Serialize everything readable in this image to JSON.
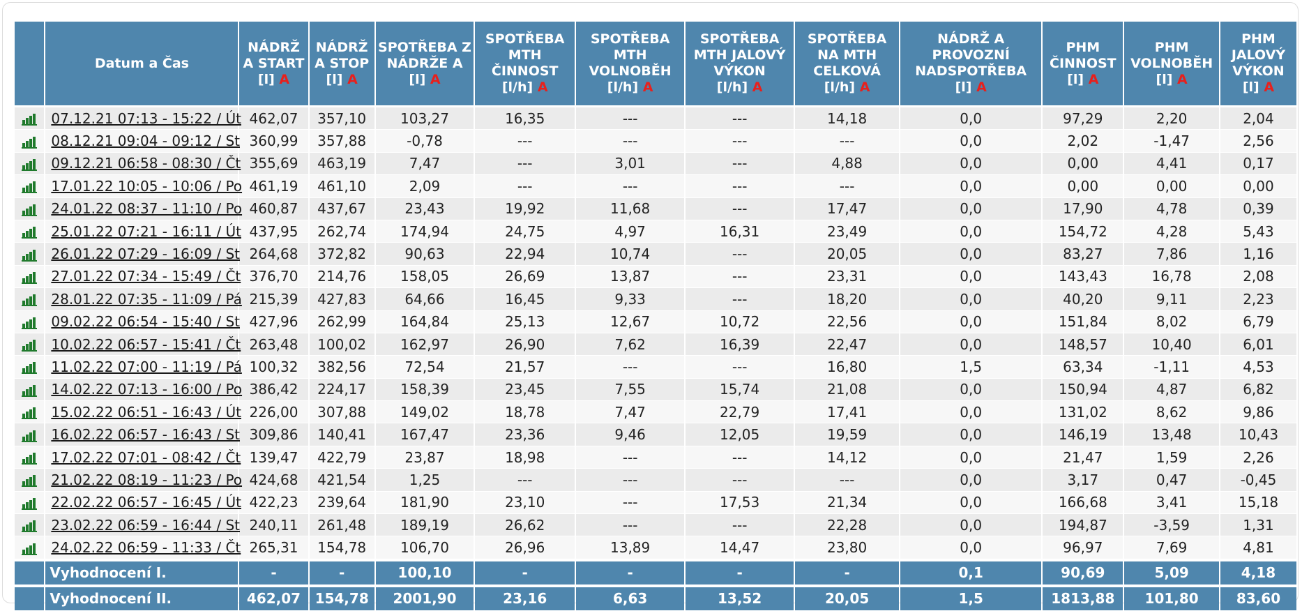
{
  "headers": [
    {
      "key": "icon",
      "line1": "",
      "unit": "",
      "flag": ""
    },
    {
      "key": "date",
      "line1": "Datum a Čas",
      "unit": "",
      "flag": ""
    },
    {
      "key": "nadrz_a_start",
      "line1": "NÁDRŽ A START",
      "unit": "[l]",
      "flag": "A"
    },
    {
      "key": "nadrz_a_stop",
      "line1": "NÁDRŽ A STOP",
      "unit": "[l]",
      "flag": "A"
    },
    {
      "key": "spotreba_z_nadrze_a",
      "line1": "SPOTŘEBA Z NÁDRŽE A",
      "unit": "[l]",
      "flag": "A"
    },
    {
      "key": "spotreba_mth_cinnost",
      "line1": "SPOTŘEBA MTH ČINNOST",
      "unit": "[l/h]",
      "flag": "A"
    },
    {
      "key": "spotreba_mth_volnobeh",
      "line1": "SPOTŘEBA MTH VOLNOBĚH",
      "unit": "[l/h]",
      "flag": "A"
    },
    {
      "key": "spotreba_mth_jalovy_vykon",
      "line1": "SPOTŘEBA MTH JALOVÝ VÝKON",
      "unit": "[l/h]",
      "flag": "A"
    },
    {
      "key": "spotreba_na_mth_celkova",
      "line1": "SPOTŘEBA NA MTH CELKOVÁ",
      "unit": "[l/h]",
      "flag": "A"
    },
    {
      "key": "nadrz_a_provozni_nadspotreba",
      "line1": "NÁDRŽ A PROVOZNÍ NADSPOTŘEBA",
      "unit": "[l]",
      "flag": "A"
    },
    {
      "key": "phm_cinnost",
      "line1": "PHM ČINNOST",
      "unit": "[l]",
      "flag": "A"
    },
    {
      "key": "phm_volnobeh",
      "line1": "PHM VOLNOBĚH",
      "unit": "[l]",
      "flag": "A"
    },
    {
      "key": "phm_jalovy_vykon",
      "line1": "PHM JALOVÝ VÝKON",
      "unit": "[l]",
      "flag": "A"
    }
  ],
  "rows": [
    [
      "07.12.21 07:13 - 15:22 / Út",
      "462,07",
      "357,10",
      "103,27",
      "16,35",
      "---",
      "---",
      "14,18",
      "0,0",
      "97,29",
      "2,20",
      "2,04"
    ],
    [
      "08.12.21 09:04 - 09:12 / St",
      "360,99",
      "357,88",
      "-0,78",
      "---",
      "---",
      "---",
      "---",
      "0,0",
      "2,02",
      "-1,47",
      "2,56"
    ],
    [
      "09.12.21 06:58 - 08:30 / Čt",
      "355,69",
      "463,19",
      "7,47",
      "---",
      "3,01",
      "---",
      "4,88",
      "0,0",
      "0,00",
      "4,41",
      "0,17"
    ],
    [
      "17.01.22 10:05 - 10:06 / Po",
      "461,19",
      "461,10",
      "2,09",
      "---",
      "---",
      "---",
      "---",
      "0,0",
      "0,00",
      "0,00",
      "0,00"
    ],
    [
      "24.01.22 08:37 - 11:10 / Po",
      "460,87",
      "437,67",
      "23,43",
      "19,92",
      "11,68",
      "---",
      "17,47",
      "0,0",
      "17,90",
      "4,78",
      "0,39"
    ],
    [
      "25.01.22 07:21 - 16:11 / Út",
      "437,95",
      "262,74",
      "174,94",
      "24,75",
      "4,97",
      "16,31",
      "23,49",
      "0,0",
      "154,72",
      "4,28",
      "5,43"
    ],
    [
      "26.01.22 07:29 - 16:09 / St",
      "264,68",
      "372,82",
      "90,63",
      "22,94",
      "10,74",
      "---",
      "20,05",
      "0,0",
      "83,27",
      "7,86",
      "1,16"
    ],
    [
      "27.01.22 07:34 - 15:49 / Čt",
      "376,70",
      "214,76",
      "158,05",
      "26,69",
      "13,87",
      "---",
      "23,31",
      "0,0",
      "143,43",
      "16,78",
      "2,08"
    ],
    [
      "28.01.22 07:35 - 11:09 / Pá",
      "215,39",
      "427,83",
      "64,66",
      "16,45",
      "9,33",
      "---",
      "18,20",
      "0,0",
      "40,20",
      "9,11",
      "2,23"
    ],
    [
      "09.02.22 06:54 - 15:40 / St",
      "427,96",
      "262,99",
      "164,84",
      "25,13",
      "12,67",
      "10,72",
      "22,56",
      "0,0",
      "151,84",
      "8,02",
      "6,79"
    ],
    [
      "10.02.22 06:57 - 15:41 / Čt",
      "263,48",
      "100,02",
      "162,97",
      "26,90",
      "7,62",
      "16,39",
      "22,47",
      "0,0",
      "148,57",
      "10,40",
      "6,01"
    ],
    [
      "11.02.22 07:00 - 11:19 / Pá",
      "100,32",
      "382,56",
      "72,54",
      "21,57",
      "---",
      "---",
      "16,80",
      "1,5",
      "63,34",
      "-1,11",
      "4,53"
    ],
    [
      "14.02.22 07:13 - 16:00 / Po",
      "386,42",
      "224,17",
      "158,39",
      "23,45",
      "7,55",
      "15,74",
      "21,08",
      "0,0",
      "150,94",
      "4,87",
      "6,82"
    ],
    [
      "15.02.22 06:51 - 16:43 / Út",
      "226,00",
      "307,88",
      "149,02",
      "18,78",
      "7,47",
      "22,79",
      "17,41",
      "0,0",
      "131,02",
      "8,62",
      "9,86"
    ],
    [
      "16.02.22 06:57 - 16:43 / St",
      "309,86",
      "140,41",
      "167,47",
      "23,36",
      "9,46",
      "12,05",
      "19,59",
      "0,0",
      "146,19",
      "13,48",
      "10,43"
    ],
    [
      "17.02.22 07:01 - 08:42 / Čt",
      "139,47",
      "422,79",
      "23,87",
      "18,98",
      "---",
      "---",
      "14,12",
      "0,0",
      "21,47",
      "1,59",
      "2,26"
    ],
    [
      "21.02.22 08:19 - 11:23 / Po",
      "424,68",
      "421,54",
      "1,25",
      "---",
      "---",
      "---",
      "---",
      "0,0",
      "3,17",
      "0,47",
      "-0,45"
    ],
    [
      "22.02.22 06:57 - 16:45 / Út",
      "422,23",
      "239,64",
      "181,90",
      "23,10",
      "---",
      "17,53",
      "21,34",
      "0,0",
      "166,68",
      "3,41",
      "15,18"
    ],
    [
      "23.02.22 06:59 - 16:44 / St",
      "240,11",
      "261,48",
      "189,19",
      "26,62",
      "---",
      "---",
      "22,28",
      "0,0",
      "194,87",
      "-3,59",
      "1,31"
    ],
    [
      "24.02.22 06:59 - 11:33 / Čt",
      "265,31",
      "154,78",
      "106,70",
      "26,96",
      "13,89",
      "14,47",
      "23,80",
      "0,0",
      "96,97",
      "7,69",
      "4,81"
    ]
  ],
  "summaries": [
    [
      "Vyhodnocení I.",
      "-",
      "-",
      "100,10",
      "-",
      "-",
      "-",
      "-",
      "0,1",
      "90,69",
      "5,09",
      "4,18"
    ],
    [
      "Vyhodnocení II.",
      "462,07",
      "154,78",
      "2001,90",
      "23,16",
      "6,63",
      "13,52",
      "20,05",
      "1,5",
      "1813,88",
      "101,80",
      "83,60"
    ]
  ],
  "icons": {
    "row_chart": "bar-chart-icon"
  },
  "colors": {
    "header_bg": "#4f86ad",
    "flag": "#e8201c",
    "chart_icon": "#1f7a2c",
    "row_odd": "#ebebeb",
    "row_even": "#f7f7f7"
  }
}
